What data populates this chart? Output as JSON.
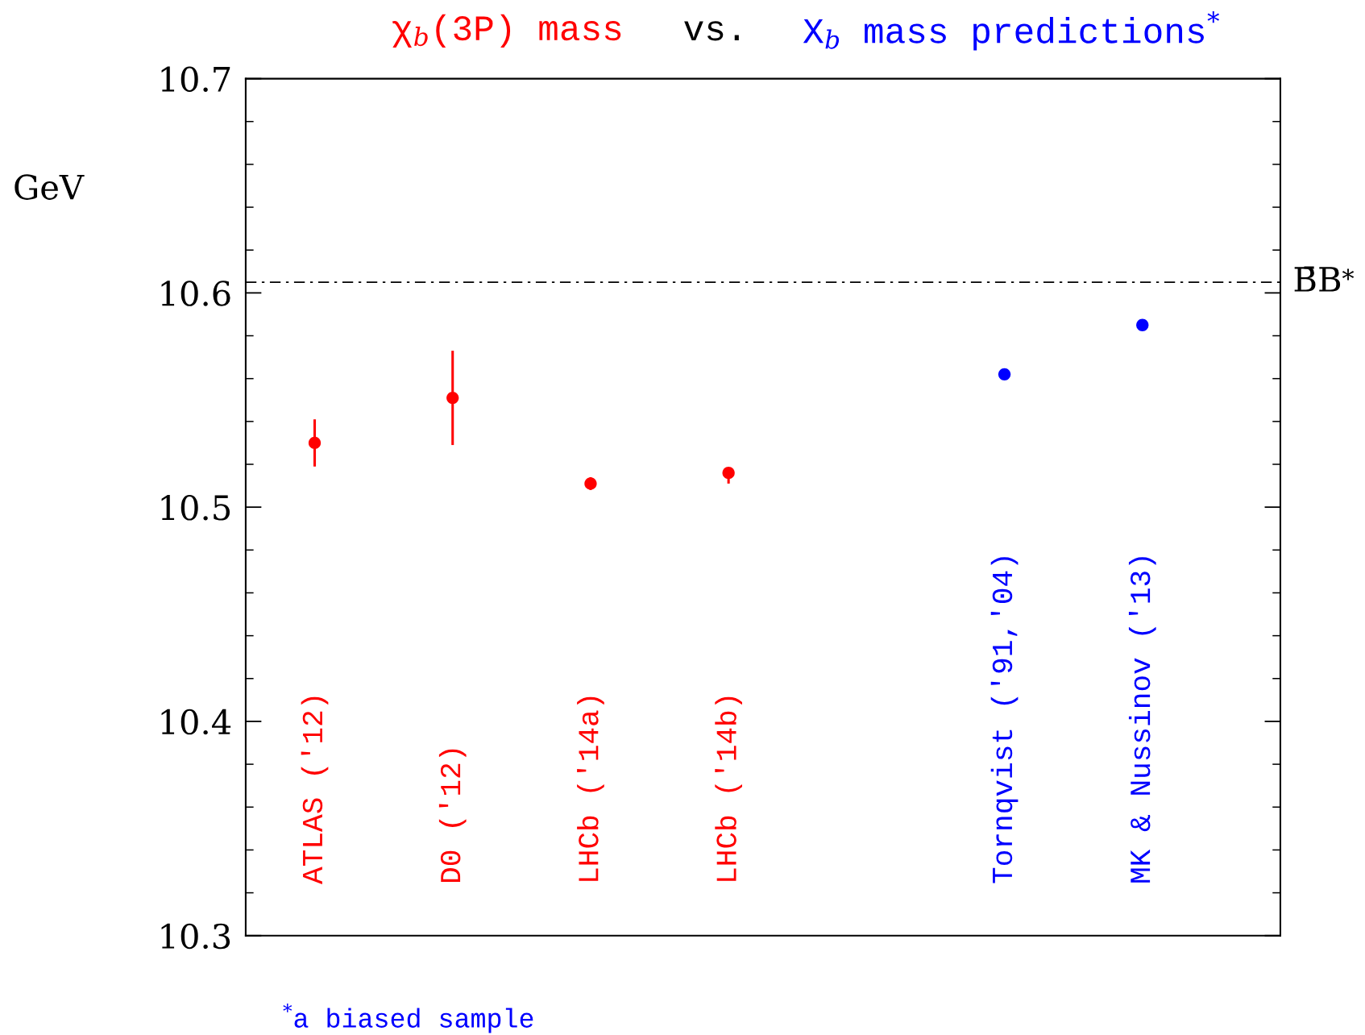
{
  "chart_data": {
    "type": "scatter",
    "title": "vs.",
    "ylabel": "GeV",
    "categories": [
      "ATLAS ('12)",
      "D0 ('12)",
      "LHCb ('14a)",
      "LHCb ('14b)",
      null,
      "Tornqvist ('91,'04)",
      "MK & Nussinov ('13)"
    ],
    "series": [
      {
        "name": "χ$_{b}$(3P) mass",
        "color": "#ff0000",
        "values": [
          10.53,
          10.551,
          10.511,
          10.516,
          null,
          null,
          null
        ],
        "errors": [
          0.011,
          0.022,
          0.003,
          [
            10.511,
            10.518
          ],
          null,
          null,
          null
        ]
      },
      {
        "name": "X$_{b}$ mass predictions$^{*}$",
        "color": "#0000ff",
        "values": [
          null,
          null,
          null,
          null,
          null,
          10.562,
          10.585
        ]
      }
    ],
    "ylim": [
      10.3,
      10.7
    ],
    "yticks": [
      10.3,
      10.4,
      10.5,
      10.6,
      10.7
    ],
    "marker": "circle",
    "ref_lines": [
      {
        "axis": "y",
        "value": 10.605,
        "label": "B̄B$^{*}$",
        "color": "#000000",
        "line_style": "dashdot"
      }
    ],
    "annotations": [
      "$^{*}$a biased sample"
    ]
  }
}
